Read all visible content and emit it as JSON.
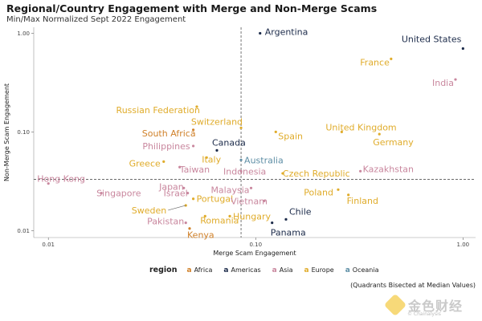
{
  "chart_data": {
    "type": "scatter",
    "title": "Regional/Country Engagement with Merge and Non-Merge Scams",
    "subtitle": "Min/Max Normalized Sept 2022 Engagement",
    "xlabel": "Merge Scam Engagement",
    "ylabel": "Non-Merge Scam Engagement",
    "x_scale": "log",
    "y_scale": "log",
    "xlim": [
      0.0085,
      1.15
    ],
    "ylim": [
      0.0085,
      1.15
    ],
    "x_ticks": [
      {
        "value": 0.01,
        "label": "0.01"
      },
      {
        "value": 0.1,
        "label": "0.10"
      },
      {
        "value": 1,
        "label": "1.00"
      }
    ],
    "y_ticks": [
      {
        "value": 0.01,
        "label": "0.01"
      },
      {
        "value": 0.1,
        "label": "0.10"
      },
      {
        "value": 1,
        "label": "1.00"
      }
    ],
    "median_x": 0.085,
    "median_y": 0.033,
    "grid": false,
    "legend_title": "region",
    "legend_position": "bottom",
    "region_colors": {
      "Africa": "#d0812a",
      "Americas": "#1c2b4a",
      "Asia": "#c9879e",
      "Europe": "#e0ac2b",
      "Oceania": "#5f8fa6"
    },
    "legend_entries": [
      "Africa",
      "Americas",
      "Asia",
      "Europe",
      "Oceania"
    ],
    "points": [
      {
        "label": "Argentina",
        "x": 0.105,
        "y": 1.0,
        "region": "Americas"
      },
      {
        "label": "United States",
        "x": 1.0,
        "y": 0.7,
        "region": "Americas"
      },
      {
        "label": "France",
        "x": 0.45,
        "y": 0.55,
        "region": "Europe"
      },
      {
        "label": "India",
        "x": 0.92,
        "y": 0.34,
        "region": "Asia"
      },
      {
        "label": "Russian Federation",
        "x": 0.052,
        "y": 0.18,
        "region": "Europe"
      },
      {
        "label": "Switzerland",
        "x": 0.085,
        "y": 0.11,
        "region": "Europe"
      },
      {
        "label": "South Africa",
        "x": 0.05,
        "y": 0.105,
        "region": "Africa"
      },
      {
        "label": "United Kingdom",
        "x": 0.26,
        "y": 0.1,
        "region": "Europe"
      },
      {
        "label": "Spain",
        "x": 0.125,
        "y": 0.1,
        "region": "Europe"
      },
      {
        "label": "Germany",
        "x": 0.395,
        "y": 0.095,
        "region": "Europe"
      },
      {
        "label": "Philippines",
        "x": 0.05,
        "y": 0.072,
        "region": "Asia"
      },
      {
        "label": "Canada",
        "x": 0.065,
        "y": 0.065,
        "region": "Americas"
      },
      {
        "label": "Italy",
        "x": 0.058,
        "y": 0.055,
        "region": "Europe"
      },
      {
        "label": "Australia",
        "x": 0.085,
        "y": 0.052,
        "region": "Oceania"
      },
      {
        "label": "Greece",
        "x": 0.036,
        "y": 0.05,
        "region": "Europe"
      },
      {
        "label": "Taiwan",
        "x": 0.043,
        "y": 0.044,
        "region": "Asia"
      },
      {
        "label": "Indonesia",
        "x": 0.085,
        "y": 0.04,
        "region": "Asia"
      },
      {
        "label": "Czech Republic",
        "x": 0.135,
        "y": 0.038,
        "region": "Europe"
      },
      {
        "label": "Kazakhstan",
        "x": 0.32,
        "y": 0.04,
        "region": "Asia"
      },
      {
        "label": "Hong Kong",
        "x": 0.01,
        "y": 0.03,
        "region": "Asia"
      },
      {
        "label": "Japan",
        "x": 0.045,
        "y": 0.027,
        "region": "Asia"
      },
      {
        "label": "Poland",
        "x": 0.25,
        "y": 0.026,
        "region": "Europe"
      },
      {
        "label": "Malaysia",
        "x": 0.095,
        "y": 0.027,
        "region": "Asia"
      },
      {
        "label": "Finland",
        "x": 0.28,
        "y": 0.023,
        "region": "Europe"
      },
      {
        "label": "Singapore",
        "x": 0.018,
        "y": 0.024,
        "region": "Asia"
      },
      {
        "label": "Israel",
        "x": 0.047,
        "y": 0.024,
        "region": "Asia"
      },
      {
        "label": "Portugal",
        "x": 0.05,
        "y": 0.021,
        "region": "Europe"
      },
      {
        "label": "Vietnam",
        "x": 0.11,
        "y": 0.02,
        "region": "Asia"
      },
      {
        "label": "Chile",
        "x": 0.14,
        "y": 0.013,
        "region": "Americas"
      },
      {
        "label": "Sweden",
        "x": 0.046,
        "y": 0.018,
        "region": "Europe"
      },
      {
        "label": "Hungary",
        "x": 0.075,
        "y": 0.014,
        "region": "Europe"
      },
      {
        "label": "Romania",
        "x": 0.057,
        "y": 0.014,
        "region": "Europe"
      },
      {
        "label": "Panama",
        "x": 0.12,
        "y": 0.012,
        "region": "Americas"
      },
      {
        "label": "Pakistan",
        "x": 0.046,
        "y": 0.012,
        "region": "Asia"
      },
      {
        "label": "Kenya",
        "x": 0.048,
        "y": 0.0105,
        "region": "Africa"
      }
    ]
  },
  "note": "(Quadrants Bisected at Median Values)",
  "watermark": {
    "text": "金色财经",
    "sub": "© Chainalysis"
  }
}
